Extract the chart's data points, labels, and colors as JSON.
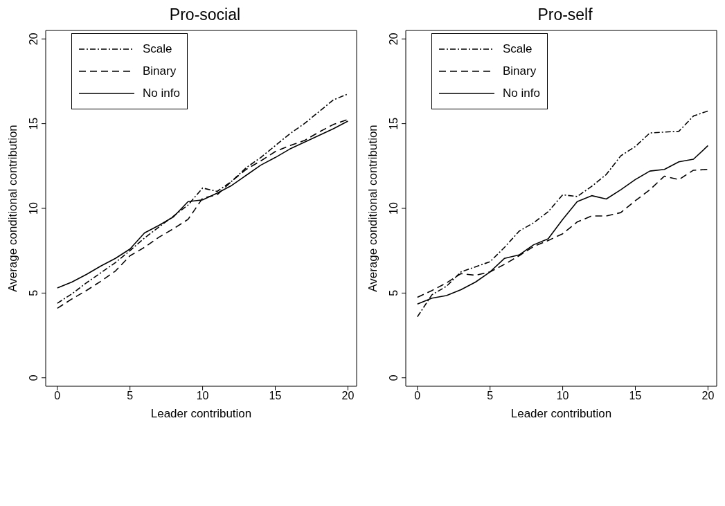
{
  "chart_data": [
    {
      "type": "line",
      "title": "Pro-social",
      "xlabel": "Leader contribution",
      "ylabel": "Average conditional contribution",
      "x": [
        0,
        1,
        2,
        3,
        4,
        5,
        6,
        7,
        8,
        9,
        10,
        11,
        12,
        13,
        14,
        15,
        16,
        17,
        18,
        19,
        20
      ],
      "xlim": [
        -0.8,
        20.6
      ],
      "xticks": [
        0,
        5,
        10,
        15,
        20
      ],
      "ylim": [
        -0.5,
        20.5
      ],
      "yticks": [
        0,
        5,
        10,
        15,
        20
      ],
      "grid": false,
      "legend": "top left",
      "marker": "none",
      "series": [
        {
          "name": "Scale",
          "color": "#000000",
          "line_style": "dashdot",
          "values": [
            4.4,
            4.95,
            5.6,
            6.2,
            6.8,
            7.5,
            8.25,
            8.9,
            9.55,
            10.2,
            11.2,
            11.0,
            11.6,
            12.4,
            13.0,
            13.7,
            14.4,
            15.0,
            15.7,
            16.4,
            16.75
          ]
        },
        {
          "name": "Binary",
          "color": "#000000",
          "line_style": "dashed",
          "values": [
            4.1,
            4.65,
            5.15,
            5.7,
            6.3,
            7.2,
            7.7,
            8.3,
            8.8,
            9.35,
            10.6,
            10.8,
            11.6,
            12.3,
            12.8,
            13.35,
            13.7,
            14.0,
            14.5,
            14.95,
            15.25
          ]
        },
        {
          "name": "No info",
          "color": "#000000",
          "line_style": "solid",
          "values": [
            5.3,
            5.65,
            6.1,
            6.6,
            7.05,
            7.6,
            8.55,
            9.0,
            9.5,
            10.4,
            10.5,
            10.9,
            11.35,
            11.95,
            12.55,
            13.0,
            13.5,
            13.9,
            14.3,
            14.7,
            15.15
          ]
        }
      ]
    },
    {
      "type": "line",
      "title": "Pro-self",
      "xlabel": "Leader contribution",
      "ylabel": "Average conditional contribution",
      "x": [
        0,
        1,
        2,
        3,
        4,
        5,
        6,
        7,
        8,
        9,
        10,
        11,
        12,
        13,
        14,
        15,
        16,
        17,
        18,
        19,
        20
      ],
      "xlim": [
        -0.8,
        20.6
      ],
      "xticks": [
        0,
        5,
        10,
        15,
        20
      ],
      "ylim": [
        -0.5,
        20.5
      ],
      "yticks": [
        0,
        5,
        10,
        15,
        20
      ],
      "grid": false,
      "legend": "top left",
      "marker": "none",
      "series": [
        {
          "name": "Scale",
          "color": "#000000",
          "line_style": "dashdot",
          "values": [
            3.6,
            4.9,
            5.4,
            6.25,
            6.55,
            6.85,
            7.7,
            8.65,
            9.15,
            9.8,
            10.8,
            10.7,
            11.3,
            12.0,
            13.1,
            13.65,
            14.45,
            14.5,
            14.55,
            15.45,
            15.75
          ]
        },
        {
          "name": "Binary",
          "color": "#000000",
          "line_style": "dashed",
          "values": [
            4.75,
            5.15,
            5.6,
            6.15,
            6.05,
            6.25,
            6.7,
            7.2,
            7.75,
            8.1,
            8.5,
            9.2,
            9.55,
            9.55,
            9.75,
            10.45,
            11.1,
            11.9,
            11.7,
            12.25,
            12.3
          ]
        },
        {
          "name": "No info",
          "color": "#000000",
          "line_style": "solid",
          "values": [
            4.35,
            4.7,
            4.85,
            5.2,
            5.65,
            6.25,
            7.05,
            7.25,
            7.85,
            8.2,
            9.35,
            10.4,
            10.75,
            10.55,
            11.1,
            11.7,
            12.2,
            12.3,
            12.75,
            12.9,
            13.7
          ]
        }
      ]
    }
  ]
}
